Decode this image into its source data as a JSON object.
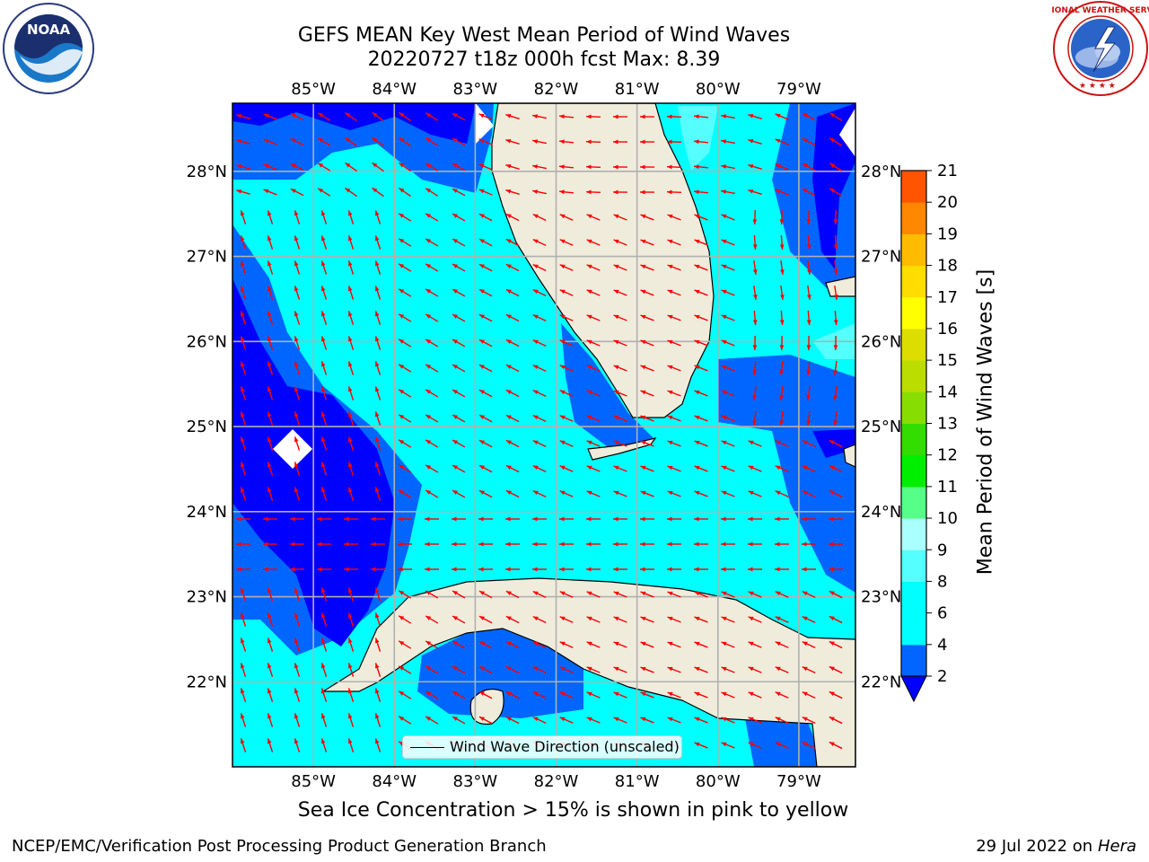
{
  "header": {
    "title_line1": "GEFS MEAN Key West Mean Period of Wind Waves",
    "title_line2": "20220727 t18z 000h fcst   Max: 8.39"
  },
  "logos": {
    "left": "noaa-logo",
    "right": "nws-logo",
    "left_text": "NOAA",
    "right_text": "NATIONAL WEATHER SERVICE"
  },
  "map": {
    "lon_labels": [
      "85°W",
      "84°W",
      "83°W",
      "82°W",
      "81°W",
      "80°W",
      "79°W"
    ],
    "lat_labels": [
      "22°N",
      "23°N",
      "24°N",
      "25°N",
      "26°N",
      "27°N",
      "28°N"
    ],
    "extent": {
      "lon_min": -86.0,
      "lon_max": -78.3,
      "lat_min": 21.0,
      "lat_max": 28.8
    },
    "land_color": "#efecdc",
    "vector_color": "#ff0000",
    "gridline_color": "#b0b0b0"
  },
  "colorbar": {
    "title": "Mean Period of Wind Waves [s]",
    "labels": [
      "2",
      "4",
      "6",
      "8",
      "9",
      "10",
      "11",
      "12",
      "13",
      "14",
      "15",
      "16",
      "17",
      "18",
      "19",
      "20",
      "21"
    ],
    "colors": [
      "#0066ff",
      "#00ffff",
      "#00ffff",
      "#55ffff",
      "#aaffff",
      "#55ff88",
      "#00ee00",
      "#33dd00",
      "#88dd00",
      "#bbdd00",
      "#dddd00",
      "#ffff00",
      "#ffdd00",
      "#ffbb00",
      "#ff8800",
      "#ff5500",
      "#ff2200",
      "#ff0000"
    ],
    "under_color": "#0000ff"
  },
  "legend": {
    "label": "Wind Wave Direction (unscaled)"
  },
  "notes": {
    "sea_ice": "Sea Ice Concentration > 15% is shown in pink to yellow",
    "footer_left": "NCEP/EMC/Verification Post Processing Product Generation Branch",
    "footer_date": "29 Jul 2022 on ",
    "footer_machine": "Hera"
  }
}
